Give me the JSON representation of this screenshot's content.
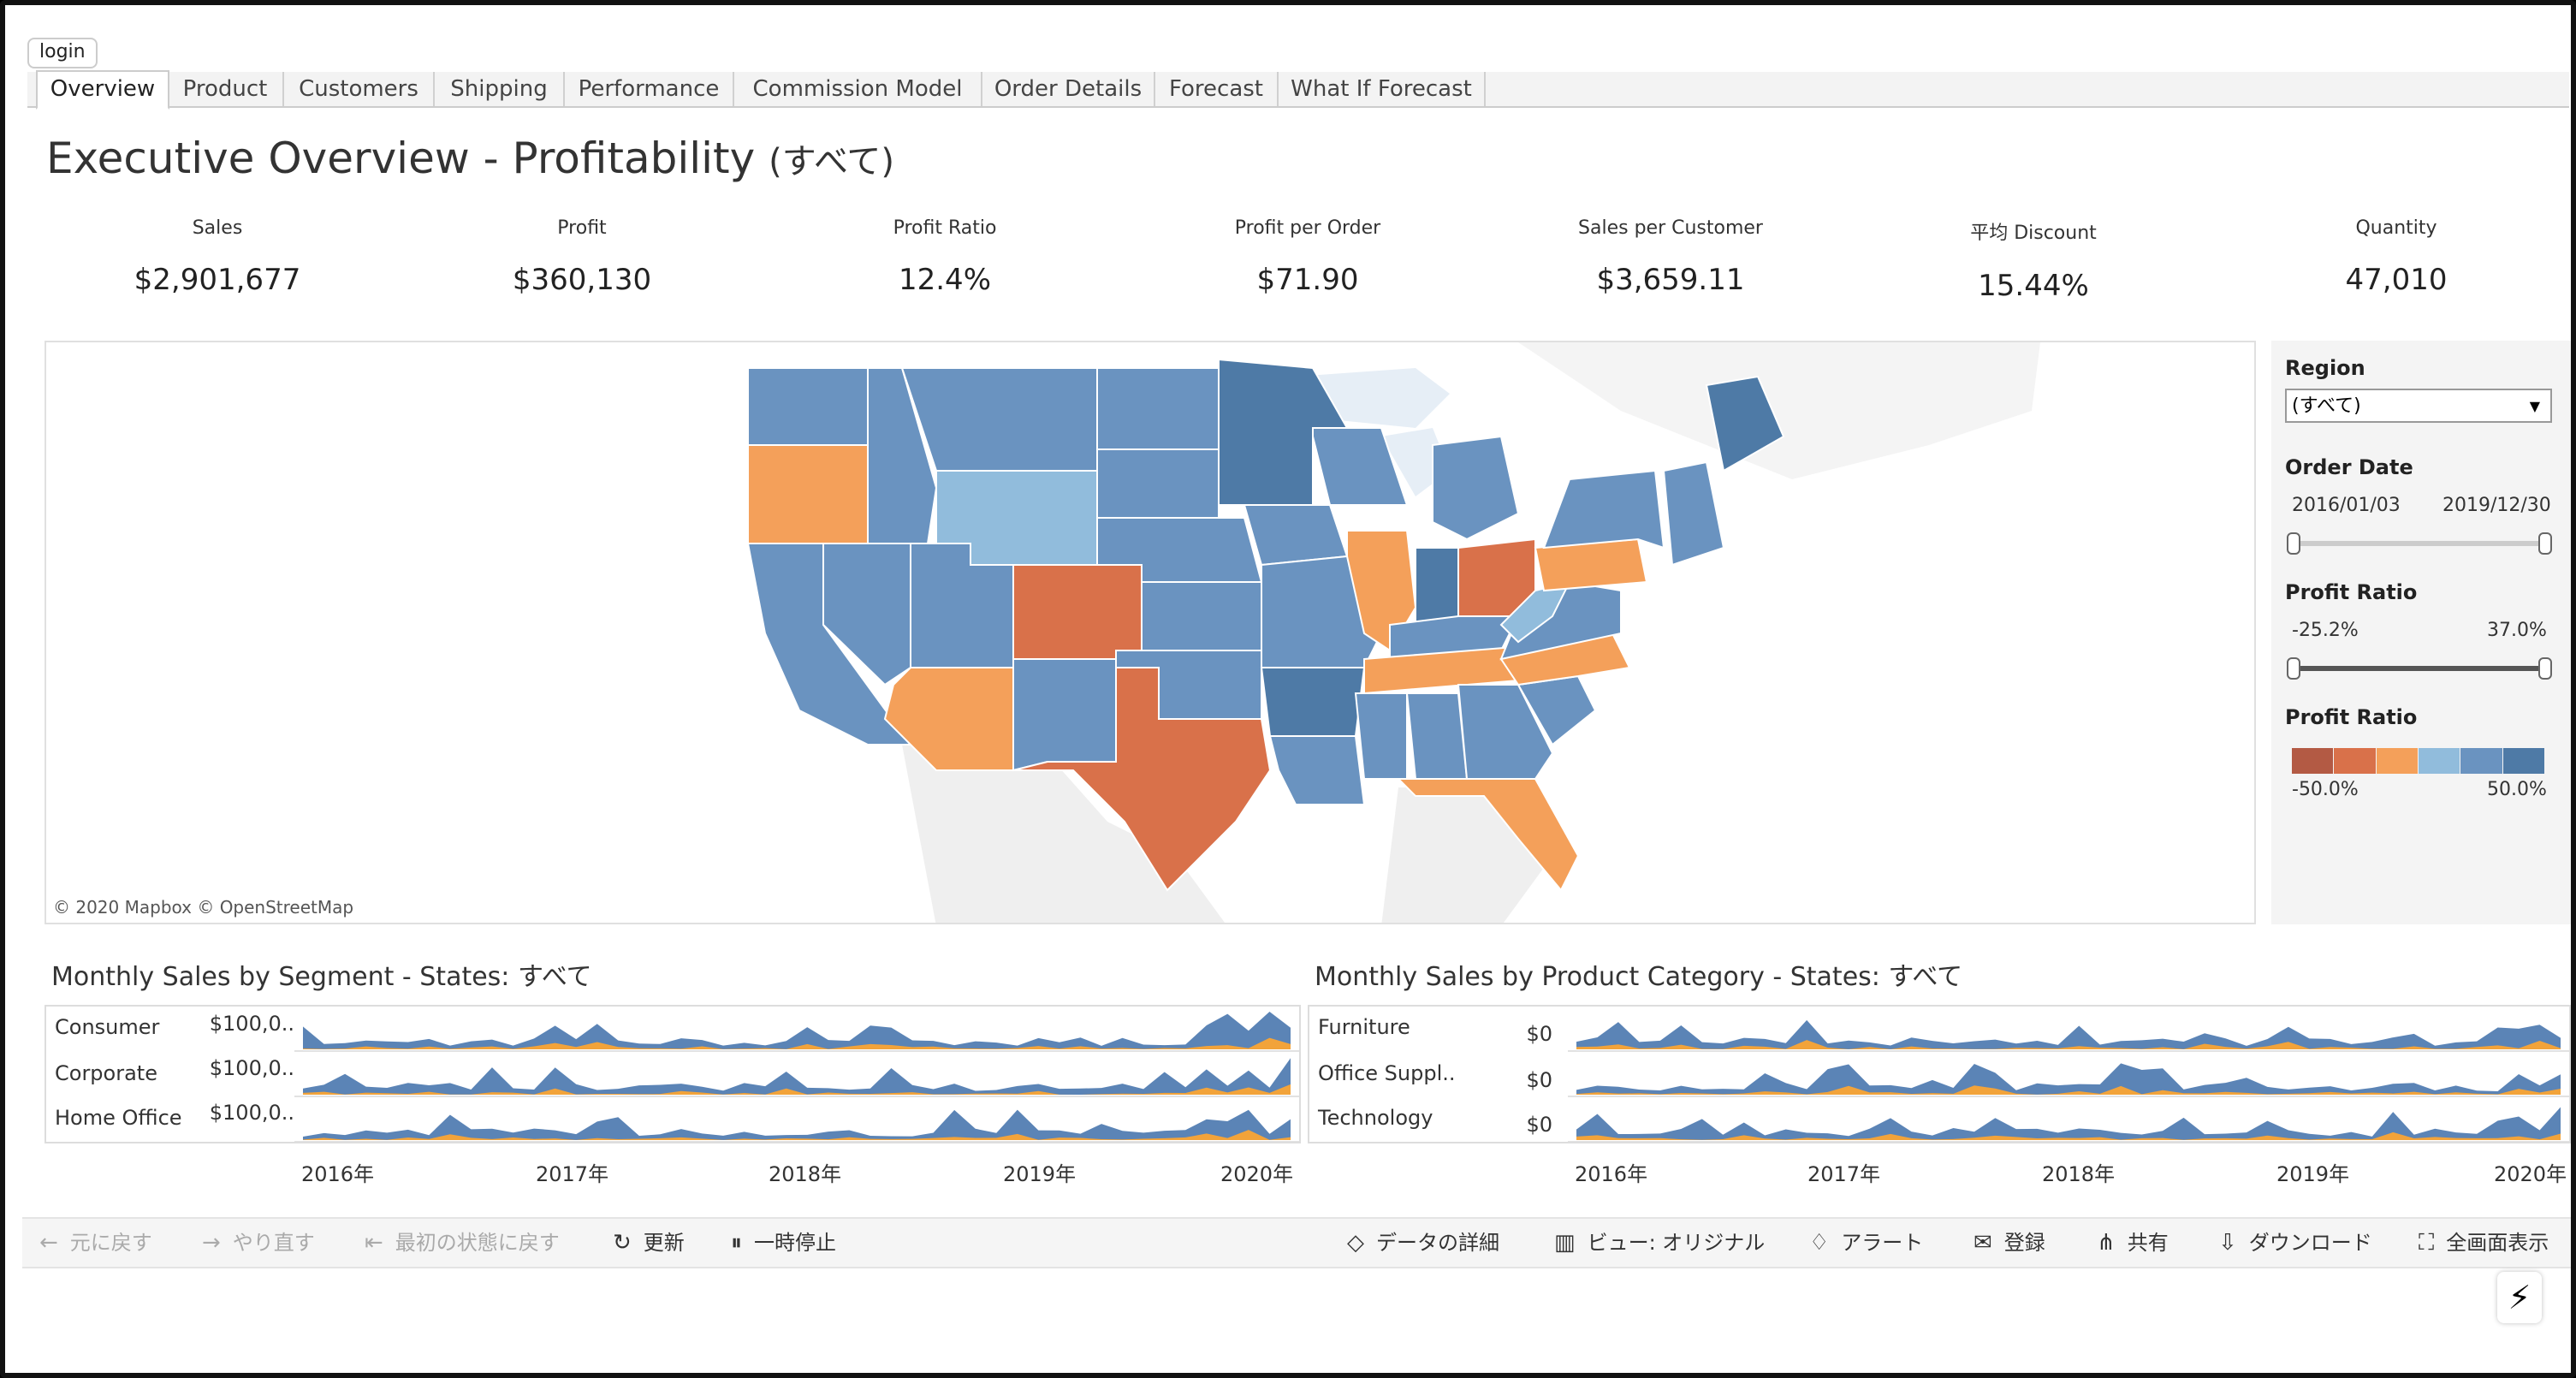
{
  "login_label": "login",
  "tabs": [
    "Overview",
    "Product",
    "Customers",
    "Shipping",
    "Performance",
    "Commission Model",
    "Order Details",
    "Forecast",
    "What If Forecast"
  ],
  "active_tab": "Overview",
  "title": "Executive Overview - Profitability",
  "title_suffix": "(すべて)",
  "kpis": [
    {
      "label": "Sales",
      "value": "$2,901,677"
    },
    {
      "label": "Profit",
      "value": "$360,130"
    },
    {
      "label": "Profit Ratio",
      "value": "12.4%"
    },
    {
      "label": "Profit per Order",
      "value": "$71.90"
    },
    {
      "label": "Sales per Customer",
      "value": "$3,659.11"
    },
    {
      "label": "平均 Discount",
      "value": "15.44%"
    },
    {
      "label": "Quantity",
      "value": "47,010"
    }
  ],
  "map": {
    "attribution": "© 2020 Mapbox  © OpenStreetMap",
    "state_fills": {
      "WA": "#6a93c0",
      "OR": "#f4a05a",
      "CA": "#6a93c0",
      "NV": "#6a93c0",
      "ID": "#6a93c0",
      "MT": "#6a93c0",
      "WY": "#91bcdc",
      "UT": "#6a93c0",
      "AZ": "#f4a05a",
      "CO": "#d9714a",
      "NM": "#6a93c0",
      "ND": "#6a93c0",
      "SD": "#6a93c0",
      "NE": "#6a93c0",
      "KS": "#6a93c0",
      "OK": "#6a93c0",
      "TX": "#d9714a",
      "MN": "#4e7aa6",
      "IA": "#6a93c0",
      "MO": "#6a93c0",
      "AR": "#4e7aa6",
      "LA": "#6a93c0",
      "WI": "#6a93c0",
      "IL": "#f4a05a",
      "IN": "#4e7aa6",
      "MI": "#6a93c0",
      "OH": "#d9714a",
      "KY": "#6a93c0",
      "TN": "#f4a05a",
      "MS": "#6a93c0",
      "AL": "#6a93c0",
      "GA": "#6a93c0",
      "FL": "#f4a05a",
      "SC": "#6a93c0",
      "NC": "#f4a05a",
      "VA": "#6a93c0",
      "WV": "#91bcdc",
      "PA": "#f4a05a",
      "NY": "#6a93c0",
      "ME": "#4e7aa6",
      "NE_small": "#6a93c0"
    }
  },
  "filters": {
    "region_label": "Region",
    "region_value": "(すべて)",
    "order_date_label": "Order Date",
    "order_date_start": "2016/01/03",
    "order_date_end": "2019/12/30",
    "profit_ratio_label": "Profit Ratio",
    "profit_ratio_min": "-25.2%",
    "profit_ratio_max": "37.0%",
    "legend_label": "Profit Ratio",
    "legend_min": "-50.0%",
    "legend_max": "50.0%",
    "legend_colors": [
      "#b35a44",
      "#d9714a",
      "#f4a05a",
      "#91bcdc",
      "#6a93c0",
      "#4e7aa6"
    ]
  },
  "segment_panel": {
    "title": "Monthly Sales by Segment - States: すべて",
    "rows": [
      {
        "label": "Consumer",
        "axis": "$100,0.."
      },
      {
        "label": "Corporate",
        "axis": "$100,0.."
      },
      {
        "label": "Home Office",
        "axis": "$100,0.."
      }
    ]
  },
  "category_panel": {
    "title": "Monthly Sales by Product Category - States: すべて",
    "rows": [
      {
        "label": "Furniture",
        "axis": "$0"
      },
      {
        "label": "Office Suppl..",
        "axis": "$0"
      },
      {
        "label": "Technology",
        "axis": "$0"
      }
    ]
  },
  "year_ticks": [
    "2016年",
    "2017年",
    "2018年",
    "2019年",
    "2020年"
  ],
  "toolbar": {
    "undo": "元に戻す",
    "redo": "やり直す",
    "revert": "最初の状態に戻す",
    "refresh": "更新",
    "pause": "一時停止",
    "details": "データの詳細",
    "view": "ビュー: オリジナル",
    "alert": "アラート",
    "subscribe": "登録",
    "share": "共有",
    "download": "ダウンロード",
    "fullscreen": "全画面表示"
  },
  "colors": {
    "blue": "#5b84b6",
    "orange": "#f2a33a"
  }
}
